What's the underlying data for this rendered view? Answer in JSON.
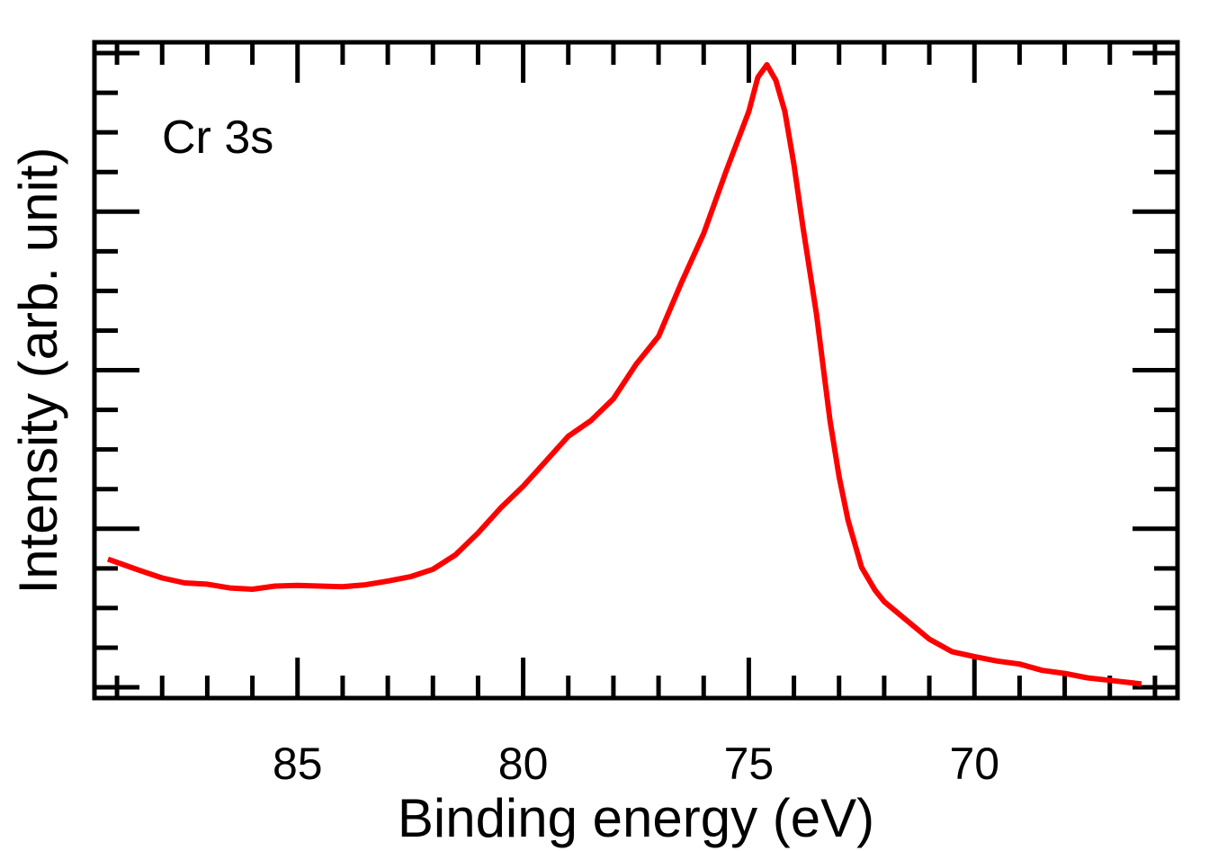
{
  "chart_data": {
    "type": "line",
    "title": "",
    "annotation": "Cr 3s",
    "xlabel": "Binding energy (eV)",
    "ylabel": "Intensity (arb. unit)",
    "x_reversed": true,
    "xlim": [
      89.5,
      65.5
    ],
    "ylim": [
      0,
      1
    ],
    "x_ticks": [
      85,
      80,
      75,
      70
    ],
    "x_tick_labels": [
      "85",
      "80",
      "75",
      "70"
    ],
    "y_tick_labels_shown": false,
    "grid": false,
    "legend": "none",
    "line_color": "#ff0000",
    "series": [
      {
        "x": [
          89.2,
          88.5,
          88.0,
          87.5,
          87.0,
          86.5,
          86.0,
          85.5,
          85.0,
          84.5,
          84.0,
          83.5,
          83.0,
          82.5,
          82.0,
          81.5,
          81.0,
          80.5,
          80.0,
          79.5,
          79.0,
          78.5,
          78.0,
          77.5,
          77.0,
          76.5,
          76.0,
          75.5,
          75.0,
          74.8,
          74.6,
          74.4,
          74.2,
          74.0,
          73.8,
          73.5,
          73.2,
          73.0,
          72.8,
          72.5,
          72.2,
          72.0,
          71.5,
          71.0,
          70.5,
          70.0,
          69.5,
          69.0,
          68.5,
          68.0,
          67.5,
          67.0,
          66.5,
          66.3
        ],
        "y": [
          0.208,
          0.19,
          0.178,
          0.17,
          0.168,
          0.162,
          0.16,
          0.165,
          0.166,
          0.165,
          0.164,
          0.167,
          0.173,
          0.18,
          0.192,
          0.215,
          0.25,
          0.29,
          0.325,
          0.365,
          0.405,
          0.43,
          0.465,
          0.52,
          0.565,
          0.65,
          0.73,
          0.83,
          0.925,
          0.98,
          1.0,
          0.975,
          0.925,
          0.84,
          0.74,
          0.6,
          0.43,
          0.34,
          0.27,
          0.195,
          0.158,
          0.14,
          0.11,
          0.08,
          0.06,
          0.052,
          0.045,
          0.04,
          0.03,
          0.025,
          0.018,
          0.014,
          0.01,
          0.008
        ]
      }
    ]
  }
}
